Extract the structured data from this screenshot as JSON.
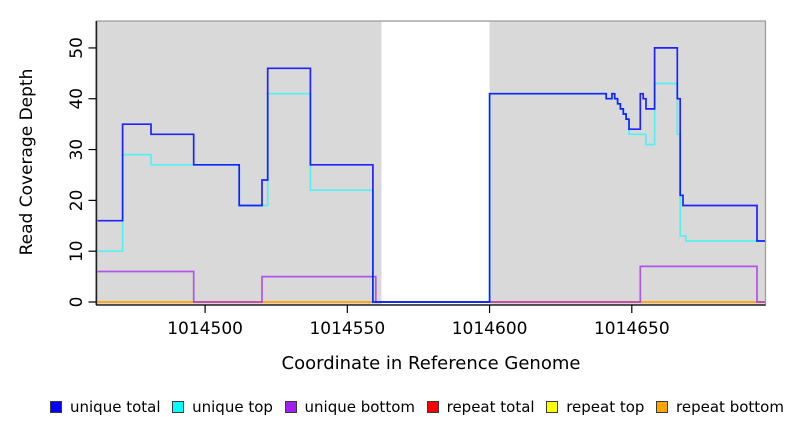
{
  "chart_data": {
    "type": "line",
    "subtype": "step-coverage",
    "title": "",
    "xlabel": "Coordinate in Reference Genome",
    "ylabel": "Read Coverage Depth",
    "xlim": [
      1014462,
      1014697
    ],
    "ylim": [
      0,
      55.3
    ],
    "x_ticks": [
      1014500,
      1014550,
      1014600,
      1014650
    ],
    "x_tick_labels": [
      "1014500",
      "1014550",
      "1014600",
      "1014650"
    ],
    "y_ticks": [
      0,
      10,
      20,
      30,
      40,
      50
    ],
    "y_tick_labels": [
      "0",
      "10",
      "20",
      "30",
      "40",
      "50"
    ],
    "grid": false,
    "panel_bg": "#d9d9d9",
    "panel_border_color": "#999999",
    "axis_color": "#000000",
    "gap_region": [
      1014562,
      1014600
    ],
    "gap_color": "#ffffff",
    "series": [
      {
        "name": "repeat total",
        "color": "#FF0000",
        "opacity": 1,
        "x": [
          1014462
        ],
        "values": [
          0
        ]
      },
      {
        "name": "repeat top",
        "color": "#FFFF00",
        "opacity": 1,
        "x": [
          1014462
        ],
        "values": [
          0
        ]
      },
      {
        "name": "repeat bottom",
        "color": "#FFA21A",
        "opacity": 1,
        "x": [
          1014462
        ],
        "values": [
          0
        ]
      },
      {
        "name": "unique bottom",
        "color": "#A020F0",
        "opacity": 0.72,
        "x": [
          1014462,
          1014496,
          1014520,
          1014560,
          1014653,
          1014694
        ],
        "values": [
          6,
          0,
          5,
          0,
          7,
          0
        ]
      },
      {
        "name": "unique top",
        "color": "#00FFFF",
        "opacity": 0.62,
        "x": [
          1014462,
          1014471,
          1014481,
          1014512,
          1014522,
          1014537,
          1014559,
          1014600,
          1014641,
          1014643,
          1014644,
          1014645,
          1014646,
          1014647,
          1014648,
          1014649,
          1014655,
          1014658,
          1014666,
          1014667,
          1014669
        ],
        "values": [
          10,
          29,
          27,
          19,
          41,
          22,
          0,
          41,
          40,
          41,
          40,
          39,
          38,
          37,
          36,
          33,
          31,
          43,
          33,
          13,
          12
        ]
      },
      {
        "name": "unique total",
        "color": "#0000FF",
        "opacity": 0.85,
        "x": [
          1014462,
          1014471,
          1014481,
          1014496,
          1014512,
          1014520,
          1014522,
          1014537,
          1014559,
          1014600,
          1014641,
          1014643,
          1014644,
          1014645,
          1014646,
          1014647,
          1014648,
          1014649,
          1014653,
          1014654,
          1014655,
          1014658,
          1014666,
          1014667,
          1014668,
          1014694
        ],
        "values": [
          16,
          35,
          33,
          27,
          19,
          24,
          46,
          27,
          0,
          41,
          40,
          41,
          40,
          39,
          38,
          37,
          36,
          34,
          41,
          40,
          38,
          50,
          40,
          21,
          19,
          12
        ]
      }
    ],
    "legend": {
      "position": "bottom",
      "items": [
        {
          "label": "unique total",
          "color": "#0000FF"
        },
        {
          "label": "unique top",
          "color": "#00FFFF"
        },
        {
          "label": "unique bottom",
          "color": "#A020F0"
        },
        {
          "label": "repeat total",
          "color": "#FF0000"
        },
        {
          "label": "repeat top",
          "color": "#FFFF00"
        },
        {
          "label": "repeat bottom",
          "color": "#FFA500"
        }
      ]
    }
  }
}
